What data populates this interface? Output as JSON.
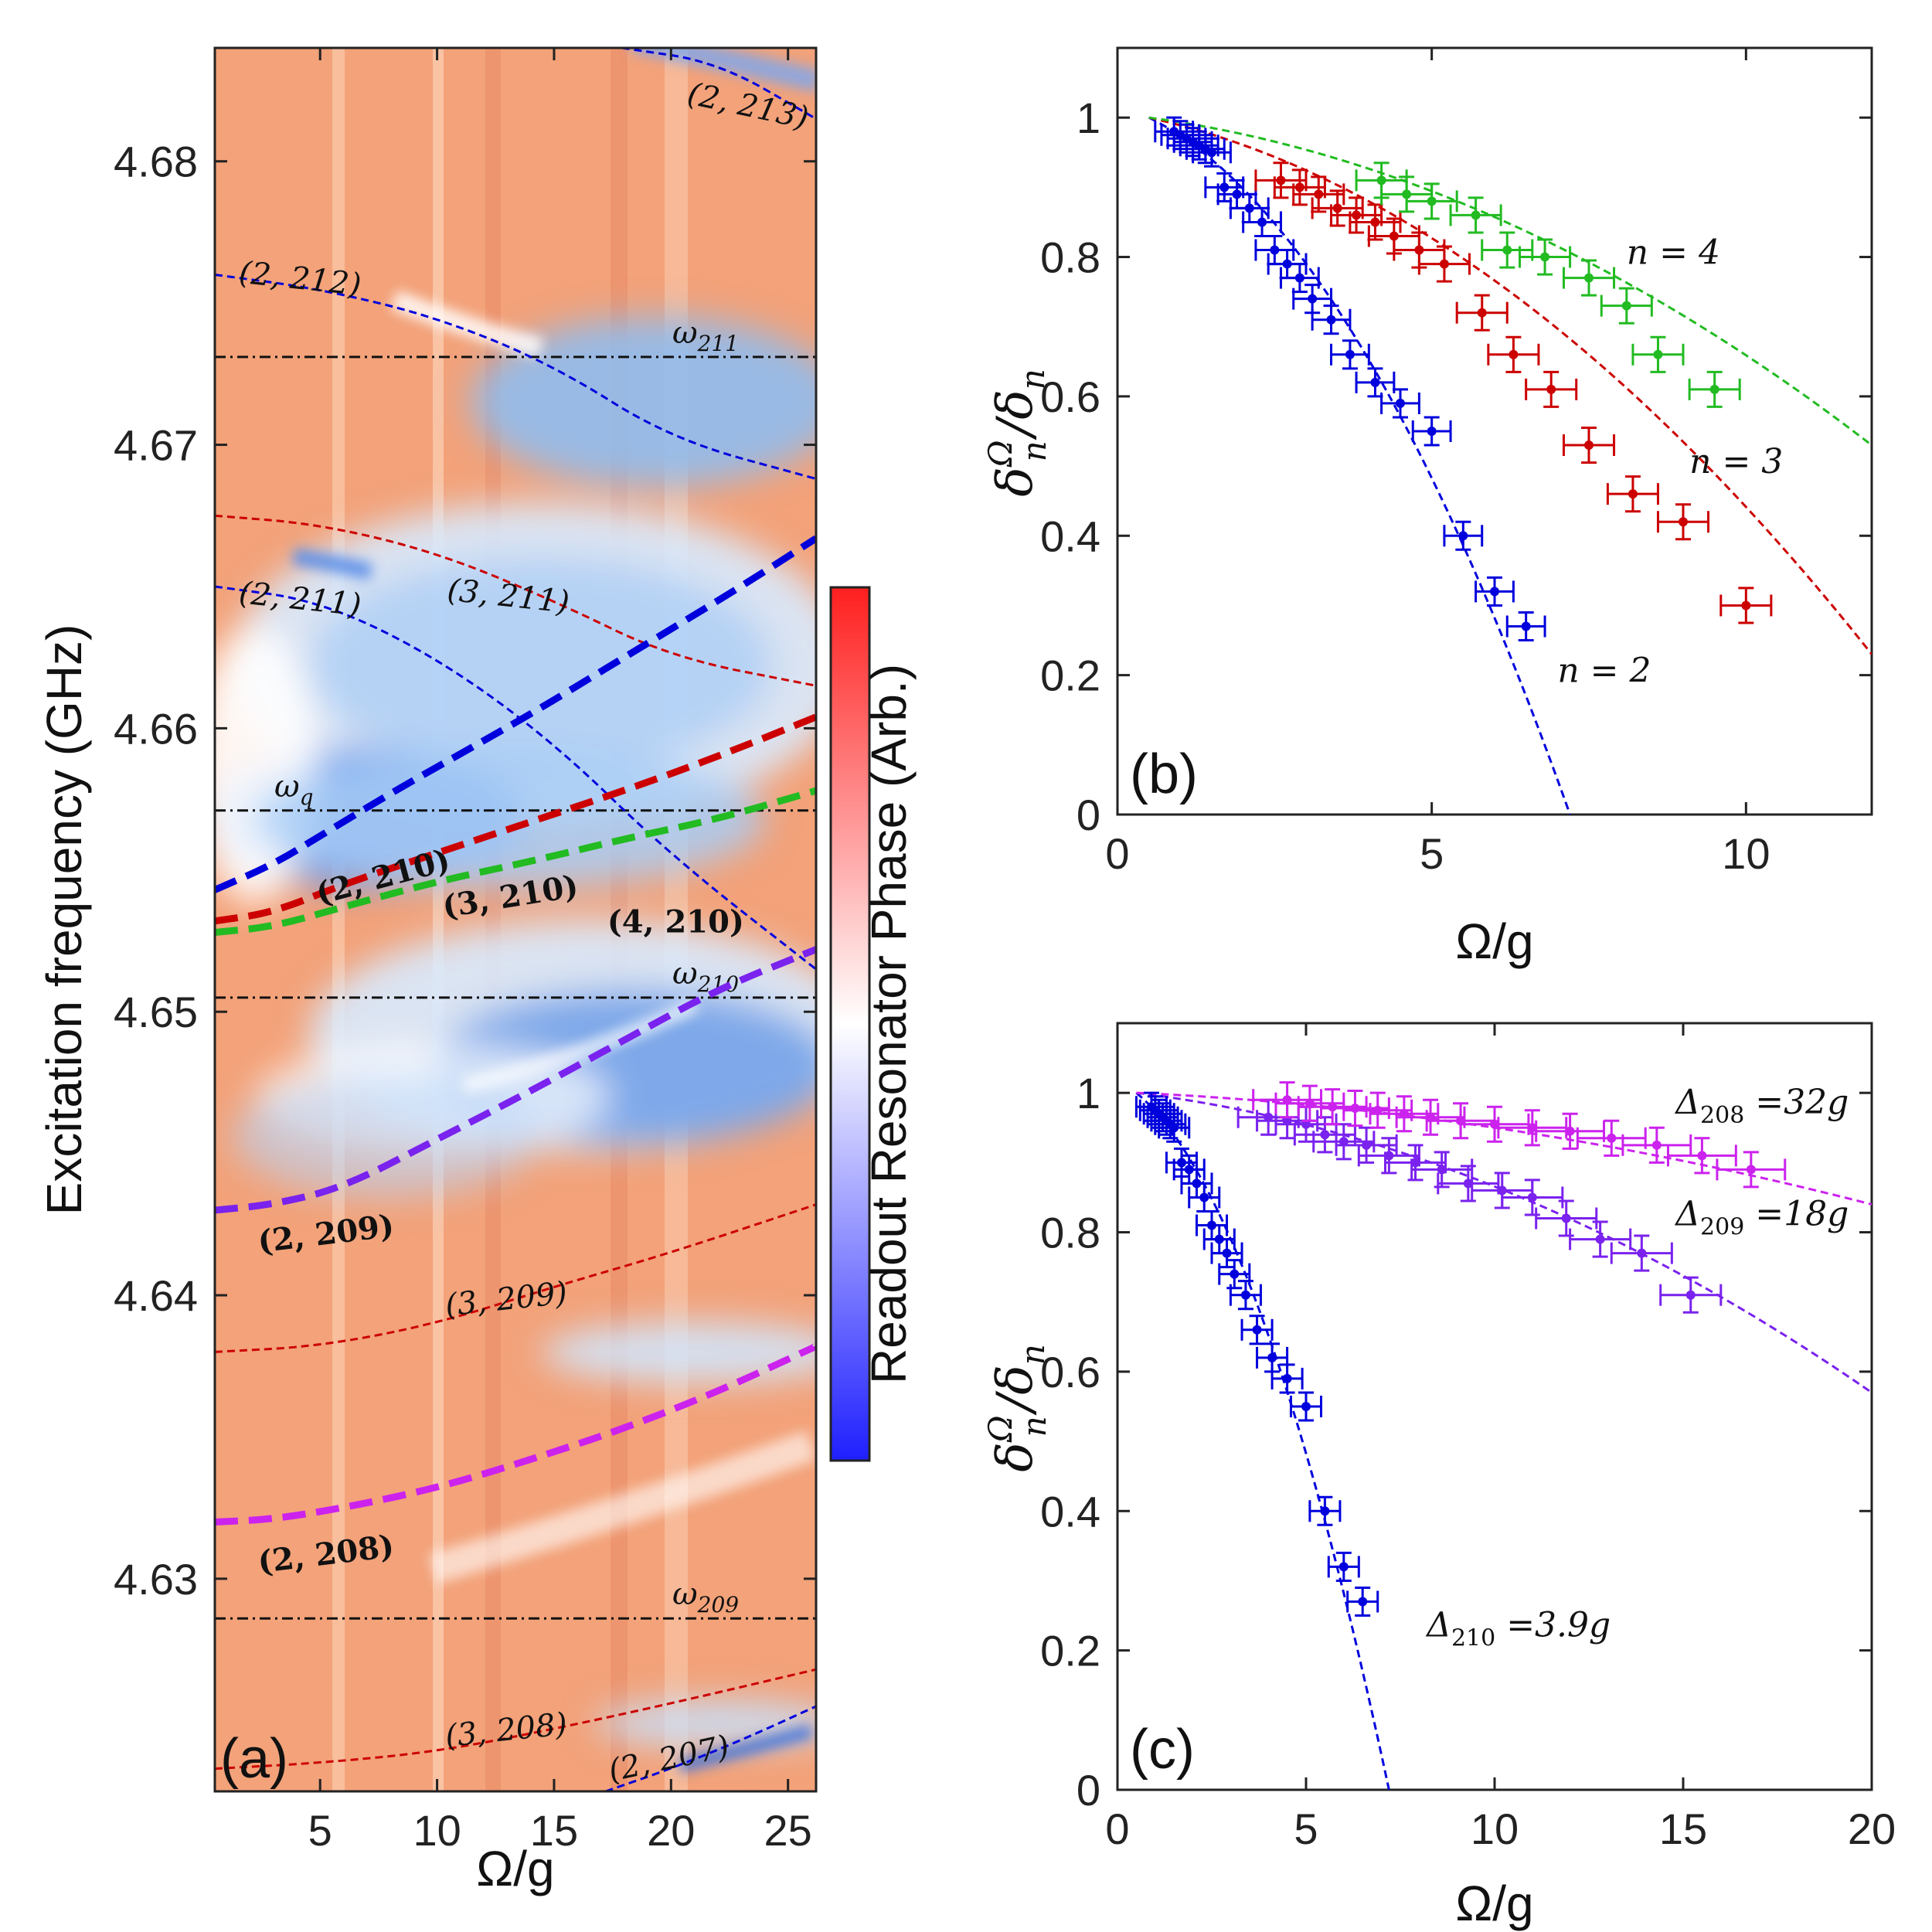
{
  "chart_data": [
    {
      "panel": "a",
      "type": "heatmap",
      "panel_label": "(a)",
      "xlabel": "Ω/g",
      "ylabel": "Excitation frequency (GHz)",
      "xlim": [
        0.5,
        26.2
      ],
      "ylim": [
        4.6225,
        4.684
      ],
      "xticks": [
        5,
        10,
        15,
        20,
        25
      ],
      "yticks": [
        4.63,
        4.64,
        4.65,
        4.66,
        4.67,
        4.68
      ],
      "colorbar": {
        "label": "Readout Resonator Phase (Arb.)",
        "colors": [
          "#1f1fff",
          "#ffffff",
          "#ff1f1f"
        ]
      },
      "reference_lines": [
        {
          "name": "ω_q",
          "sym": "ω",
          "sub": "q",
          "y": 4.6571
        },
        {
          "name": "ω_211",
          "sym": "ω",
          "sub": "211",
          "y": 4.6731
        },
        {
          "name": "ω_210",
          "sym": "ω",
          "sub": "210",
          "y": 4.6505
        },
        {
          "name": "ω_209",
          "sym": "ω",
          "sub": "209",
          "y": 4.6286
        }
      ],
      "curves": [
        {
          "label": "(2, 213)",
          "color": "#0000dd",
          "style": "dashed-thin",
          "x": [
            17.9,
            22.0,
            26.2
          ],
          "y": [
            4.684,
            4.6835,
            4.6815
          ]
        },
        {
          "label": "(2, 212)",
          "color": "#0000dd",
          "style": "dashed-thin",
          "x": [
            0.5,
            5,
            10,
            15,
            20,
            26.2
          ],
          "y": [
            4.676,
            4.6755,
            4.6745,
            4.6728,
            4.6702,
            4.6688
          ]
        },
        {
          "label": "(3, 211)",
          "color": "#cc0000",
          "style": "dashed-thin",
          "x": [
            0.5,
            5,
            10,
            15,
            20,
            26.2
          ],
          "y": [
            4.6675,
            4.6672,
            4.6662,
            4.6645,
            4.6625,
            4.6615
          ]
        },
        {
          "label": "(2, 211)",
          "color": "#0000dd",
          "style": "dashed-thin",
          "x": [
            0.5,
            5,
            10,
            15,
            20,
            26.2
          ],
          "y": [
            4.665,
            4.6645,
            4.6625,
            4.6595,
            4.6555,
            4.6515
          ]
        },
        {
          "label": "(2, 210)",
          "color": "#0000dd",
          "style": "dashed-bold",
          "x": [
            0.5,
            3,
            5,
            8,
            11,
            14,
            17,
            20,
            23,
            26.2
          ],
          "y": [
            4.6543,
            4.6552,
            4.6562,
            4.6577,
            4.6591,
            4.6605,
            4.662,
            4.6635,
            4.665,
            4.6667
          ]
        },
        {
          "label": "(3, 210)",
          "color": "#cc0000",
          "style": "dashed-bold",
          "x": [
            0.5,
            3,
            6,
            10,
            14,
            18,
            22,
            26.2
          ],
          "y": [
            4.6532,
            4.6535,
            4.6545,
            4.6556,
            4.6567,
            4.6578,
            4.659,
            4.6604
          ]
        },
        {
          "label": "(4, 210)",
          "color": "#22bb22",
          "style": "dashed-bold",
          "x": [
            0.5,
            3,
            6,
            10,
            14,
            18,
            22,
            26.2
          ],
          "y": [
            4.6528,
            4.653,
            4.6537,
            4.6546,
            4.6553,
            4.6561,
            4.6568,
            4.6578
          ]
        },
        {
          "label": "(2, 209)",
          "color": "#7a22ee",
          "style": "dashed-bold",
          "x": [
            0.5,
            3,
            6,
            10,
            14,
            18,
            22,
            26.2
          ],
          "y": [
            4.643,
            4.6432,
            4.6438,
            4.6455,
            4.6472,
            4.649,
            4.6508,
            4.6522
          ]
        },
        {
          "label": "(3, 209)",
          "color": "#cc0000",
          "style": "dashed-thin",
          "x": [
            0.5,
            5,
            10,
            15,
            20,
            26.2
          ],
          "y": [
            4.638,
            4.6382,
            4.639,
            4.6403,
            4.6415,
            4.6432
          ]
        },
        {
          "label": "(2, 208)",
          "color": "#cc22ee",
          "style": "dashed-bold",
          "x": [
            0.5,
            3,
            6,
            10,
            14,
            18,
            22,
            26.2
          ],
          "y": [
            4.632,
            4.6321,
            4.6325,
            4.6332,
            4.6342,
            4.6353,
            4.6366,
            4.6382
          ]
        },
        {
          "label": "(3, 208)",
          "color": "#cc0000",
          "style": "dashed-thin",
          "x": [
            0.5,
            5,
            10,
            15,
            20,
            26.2
          ],
          "y": [
            4.6233,
            4.6235,
            4.6239,
            4.6247,
            4.6256,
            4.6268
          ]
        },
        {
          "label": "(2, 207)",
          "color": "#0000dd",
          "style": "dashed-thin",
          "x": [
            17.2,
            20,
            23,
            26.2
          ],
          "y": [
            4.6225,
            4.6233,
            4.6243,
            4.6255
          ]
        }
      ],
      "curve_labels": [
        {
          "text": "(2, 213)",
          "x": 23.2,
          "y": 4.6816,
          "bold": false,
          "rotate": 12
        },
        {
          "text": "(2, 212)",
          "x": 4.1,
          "y": 4.6755,
          "bold": false,
          "rotate": 6
        },
        {
          "text": "(3, 211)",
          "x": 13.0,
          "y": 4.6643,
          "bold": false,
          "rotate": 6
        },
        {
          "text": "(2, 211)",
          "x": 4.1,
          "y": 4.6642,
          "bold": false,
          "rotate": 6
        },
        {
          "text": "(2, 210)",
          "x": 7.8,
          "y": 4.6544,
          "bold": true,
          "rotate": -15
        },
        {
          "text": "(3, 210)",
          "x": 13.2,
          "y": 4.6537,
          "bold": true,
          "rotate": -9
        },
        {
          "text": "(4, 210)",
          "x": 20.2,
          "y": 4.6528,
          "bold": true,
          "rotate": 0
        },
        {
          "text": "(2, 209)",
          "x": 5.3,
          "y": 4.6418,
          "bold": true,
          "rotate": -7
        },
        {
          "text": "(3, 209)",
          "x": 13.0,
          "y": 4.6395,
          "bold": false,
          "rotate": -6
        },
        {
          "text": "(2, 208)",
          "x": 5.3,
          "y": 4.6305,
          "bold": true,
          "rotate": -7
        },
        {
          "text": "(3, 208)",
          "x": 13.0,
          "y": 4.6243,
          "bold": false,
          "rotate": -6
        },
        {
          "text": "(2, 207)",
          "x": 20.0,
          "y": 4.6233,
          "bold": false,
          "rotate": -12
        }
      ]
    },
    {
      "panel": "b",
      "type": "scatter",
      "panel_label": "(b)",
      "xlabel": "Ω/g",
      "ylabel": "δ_n^Ω / δ_n",
      "xlim": [
        0,
        12
      ],
      "ylim": [
        0,
        1.1
      ],
      "xticks": [
        0,
        5,
        10
      ],
      "yticks": [
        0,
        0.2,
        0.4,
        0.6,
        0.8,
        1
      ],
      "series": [
        {
          "name": "n = 2",
          "color": "#0000dd",
          "x": [
            0.9,
            1.0,
            1.1,
            1.2,
            1.3,
            1.4,
            1.5,
            1.7,
            1.9,
            2.1,
            2.3,
            2.5,
            2.7,
            2.9,
            3.1,
            3.4,
            3.7,
            4.1,
            4.5,
            5.0,
            5.5,
            6.0,
            6.5
          ],
          "y": [
            0.98,
            0.975,
            0.97,
            0.965,
            0.96,
            0.955,
            0.95,
            0.9,
            0.89,
            0.87,
            0.85,
            0.81,
            0.79,
            0.77,
            0.74,
            0.71,
            0.66,
            0.62,
            0.59,
            0.55,
            0.4,
            0.32,
            0.27
          ],
          "xerr": 0.3,
          "yerr": 0.02
        },
        {
          "name": "n = 3",
          "color": "#cc0000",
          "x": [
            2.6,
            2.9,
            3.2,
            3.5,
            3.8,
            4.1,
            4.4,
            4.8,
            5.2,
            5.8,
            6.3,
            6.9,
            7.5,
            8.2,
            9.0,
            10.0
          ],
          "y": [
            0.91,
            0.9,
            0.89,
            0.87,
            0.86,
            0.85,
            0.83,
            0.81,
            0.79,
            0.72,
            0.66,
            0.61,
            0.53,
            0.46,
            0.42,
            0.3
          ],
          "xerr": 0.4,
          "yerr": 0.025
        },
        {
          "name": "n = 4",
          "color": "#22bb22",
          "x": [
            4.2,
            4.6,
            5.0,
            5.7,
            6.2,
            6.8,
            7.5,
            8.1,
            8.6,
            9.5
          ],
          "y": [
            0.91,
            0.89,
            0.88,
            0.86,
            0.81,
            0.8,
            0.77,
            0.73,
            0.66,
            0.61
          ],
          "xerr": 0.4,
          "yerr": 0.025
        }
      ],
      "fits": [
        {
          "name": "n = 2 fit",
          "color": "#0000dd",
          "x": [
            0.5,
            7.2
          ],
          "y": [
            1.0,
            0.0
          ],
          "curvature": 0.35
        },
        {
          "name": "n = 3 fit",
          "color": "#cc0000",
          "x": [
            0.5,
            12
          ],
          "y": [
            1.0,
            0.23
          ],
          "curvature": 0.35
        },
        {
          "name": "n = 4 fit",
          "color": "#22bb22",
          "x": [
            0.5,
            12
          ],
          "y": [
            1.0,
            0.53
          ],
          "curvature": 0.35
        }
      ],
      "annotations": [
        {
          "text": "n = 4",
          "x": 8.1,
          "y": 0.79
        },
        {
          "text": "n = 3",
          "x": 9.1,
          "y": 0.49
        },
        {
          "text": "n = 2",
          "x": 7.0,
          "y": 0.19
        }
      ]
    },
    {
      "panel": "c",
      "type": "scatter",
      "panel_label": "(c)",
      "xlabel": "Ω/g",
      "ylabel": "δ_n^Ω / δ_n",
      "xlim": [
        0,
        20
      ],
      "ylim": [
        0,
        1.1
      ],
      "xticks": [
        0,
        5,
        10,
        15,
        20
      ],
      "yticks": [
        0,
        0.2,
        0.4,
        0.6,
        0.8,
        1
      ],
      "series": [
        {
          "name": "Δ_210 = 3.9g",
          "color": "#0000dd",
          "x": [
            0.9,
            1.0,
            1.1,
            1.2,
            1.3,
            1.4,
            1.5,
            1.7,
            1.9,
            2.1,
            2.3,
            2.5,
            2.7,
            2.9,
            3.1,
            3.4,
            3.7,
            4.1,
            4.5,
            5.0,
            5.5,
            6.0,
            6.5
          ],
          "y": [
            0.98,
            0.975,
            0.97,
            0.965,
            0.96,
            0.955,
            0.95,
            0.9,
            0.89,
            0.87,
            0.85,
            0.81,
            0.79,
            0.77,
            0.74,
            0.71,
            0.66,
            0.62,
            0.59,
            0.55,
            0.4,
            0.32,
            0.27
          ],
          "xerr": 0.4,
          "yerr": 0.02
        },
        {
          "name": "Δ_209 = 18g",
          "color": "#7a22ee",
          "x": [
            4.0,
            4.5,
            5.0,
            5.5,
            6.0,
            6.6,
            7.2,
            7.9,
            8.6,
            9.3,
            10.2,
            11.0,
            11.9,
            12.8,
            13.9,
            15.2
          ],
          "y": [
            0.965,
            0.96,
            0.955,
            0.94,
            0.93,
            0.925,
            0.91,
            0.9,
            0.89,
            0.87,
            0.86,
            0.85,
            0.82,
            0.79,
            0.77,
            0.71
          ],
          "xerr": 0.8,
          "yerr": 0.025
        },
        {
          "name": "Δ_208 = 32g",
          "color": "#cc22ee",
          "x": [
            4.5,
            5.1,
            5.7,
            6.3,
            6.9,
            7.6,
            8.3,
            9.1,
            10.0,
            11.0,
            12.0,
            13.1,
            14.3,
            15.5,
            16.8
          ],
          "y": [
            0.99,
            0.985,
            0.98,
            0.978,
            0.975,
            0.97,
            0.965,
            0.96,
            0.955,
            0.95,
            0.945,
            0.935,
            0.925,
            0.91,
            0.89
          ],
          "xerr": 0.9,
          "yerr": 0.025
        }
      ],
      "fits": [
        {
          "name": "Δ_210 fit",
          "color": "#0000dd",
          "x": [
            0.5,
            7.2
          ],
          "y": [
            1.0,
            0.0
          ],
          "curvature": 0.35
        },
        {
          "name": "Δ_209 fit",
          "color": "#7a22ee",
          "x": [
            0.5,
            20
          ],
          "y": [
            1.0,
            0.57
          ],
          "curvature": 0.35
        },
        {
          "name": "Δ_208 fit",
          "color": "#cc22ee",
          "x": [
            0.5,
            20
          ],
          "y": [
            1.0,
            0.84
          ],
          "curvature": 0.35
        }
      ],
      "annotations": [
        {
          "sym": "Δ",
          "sub": "208",
          "rest": " =32g",
          "x": 14.8,
          "y": 0.97
        },
        {
          "sym": "Δ",
          "sub": "209",
          "rest": " =18g",
          "x": 14.8,
          "y": 0.81
        },
        {
          "sym": "Δ",
          "sub": "210",
          "rest": " =3.9g",
          "x": 8.2,
          "y": 0.22
        }
      ]
    }
  ]
}
